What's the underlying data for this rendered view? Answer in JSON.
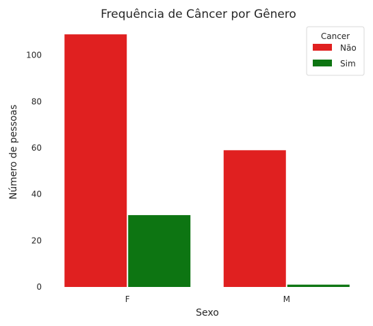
{
  "chart_data": {
    "type": "bar",
    "title": "Frequência de Câncer por Gênero",
    "xlabel": "Sexo",
    "ylabel": "Número de pessoas",
    "categories": [
      "F",
      "M"
    ],
    "series": [
      {
        "name": "Não",
        "values": [
          109,
          59
        ],
        "color": "#e02020"
      },
      {
        "name": "Sim",
        "values": [
          31,
          1
        ],
        "color": "#0d7512"
      }
    ],
    "ylim": [
      0,
      112
    ],
    "yticks": [
      0,
      20,
      40,
      60,
      80,
      100
    ],
    "legend": {
      "title": "Cancer",
      "placement": "top-right"
    },
    "grid": false
  }
}
